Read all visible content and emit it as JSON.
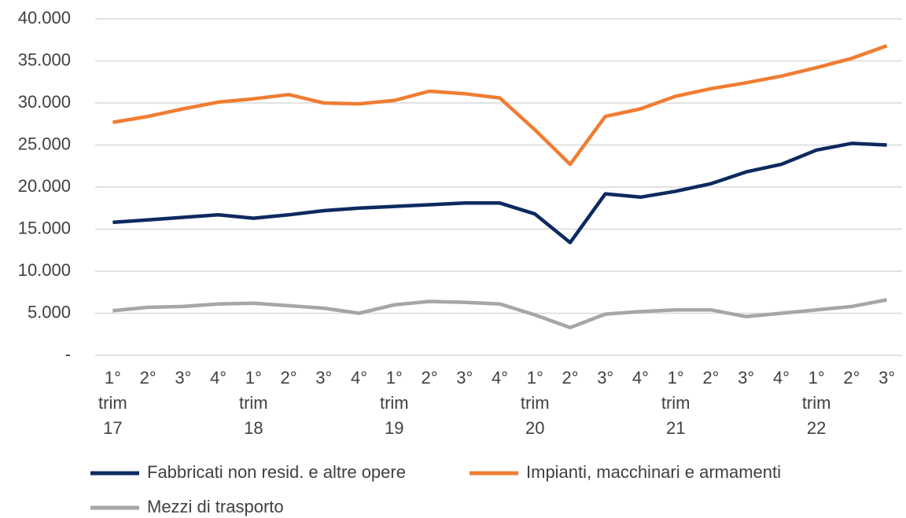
{
  "chart_data": {
    "type": "line",
    "categories": [
      [
        "1°",
        "trim",
        "17"
      ],
      [
        "2°"
      ],
      [
        "3°"
      ],
      [
        "4°"
      ],
      [
        "1°",
        "trim",
        "18"
      ],
      [
        "2°"
      ],
      [
        "3°"
      ],
      [
        "4°"
      ],
      [
        "1°",
        "trim",
        "19"
      ],
      [
        "2°"
      ],
      [
        "3°"
      ],
      [
        "4°"
      ],
      [
        "1°",
        "trim",
        "20"
      ],
      [
        "2°"
      ],
      [
        "3°"
      ],
      [
        "4°"
      ],
      [
        "1°",
        "trim",
        "21"
      ],
      [
        "2°"
      ],
      [
        "3°"
      ],
      [
        "4°"
      ],
      [
        "1°",
        "trim",
        "22"
      ],
      [
        "2°"
      ],
      [
        "3°"
      ]
    ],
    "series": [
      {
        "name": "Fabbricati non resid. e altre opere",
        "color": "#0d2a5f",
        "values": [
          15800,
          16100,
          16400,
          16700,
          16300,
          16700,
          17200,
          17500,
          17700,
          17900,
          18100,
          18100,
          16800,
          13400,
          19200,
          18800,
          19500,
          20400,
          21800,
          22700,
          24400,
          25200,
          25000
        ]
      },
      {
        "name": "Impianti, macchinari e armamenti",
        "color": "#ef7d32",
        "values": [
          27700,
          28400,
          29300,
          30100,
          30500,
          31000,
          30000,
          29900,
          30300,
          31400,
          31100,
          30600,
          26800,
          22700,
          28400,
          29300,
          30800,
          31700,
          32400,
          33200,
          34200,
          35300,
          36800
        ]
      },
      {
        "name": "Mezzi di trasporto",
        "color": "#a6a6a6",
        "values": [
          5300,
          5700,
          5800,
          6100,
          6200,
          5900,
          5600,
          5000,
          6000,
          6400,
          6300,
          6100,
          4800,
          3300,
          4900,
          5200,
          5400,
          5400,
          4600,
          5000,
          5400,
          5800,
          6600
        ]
      }
    ],
    "ylim": [
      0,
      40000
    ],
    "yticks": [
      {
        "value": 0,
        "label": "-"
      },
      {
        "value": 5000,
        "label": "5.000"
      },
      {
        "value": 10000,
        "label": "10.000"
      },
      {
        "value": 15000,
        "label": "15.000"
      },
      {
        "value": 20000,
        "label": "20.000"
      },
      {
        "value": 25000,
        "label": "25.000"
      },
      {
        "value": 30000,
        "label": "30.000"
      },
      {
        "value": 35000,
        "label": "35.000"
      },
      {
        "value": 40000,
        "label": "40.000"
      }
    ],
    "grid": true
  }
}
